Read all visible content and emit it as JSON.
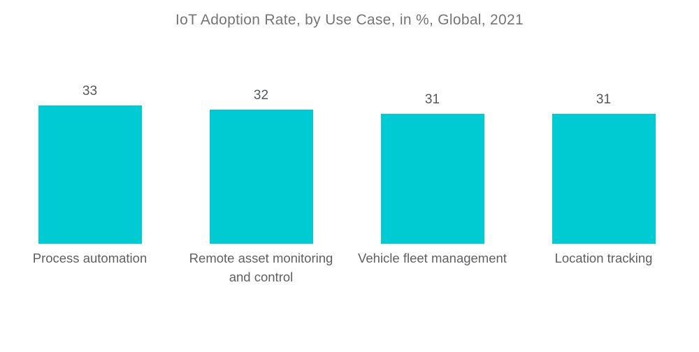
{
  "title": "IoT Adoption Rate, by Use Case, in %, Global, 2021",
  "colors": {
    "bar": "#00CBD2",
    "title_text": "#737577",
    "value_text": "#55575a",
    "category_text": "#5e6063",
    "background": "#ffffff"
  },
  "chart_data": {
    "type": "bar",
    "title": "IoT Adoption Rate, by Use Case, in %, Global, 2021",
    "categories": [
      "Process automation",
      "Remote asset monitoring and control",
      "Vehicle fleet management",
      "Location tracking"
    ],
    "values": [
      33,
      32,
      31,
      31
    ],
    "value_labels": [
      "33",
      "32",
      "31",
      "31"
    ],
    "xlabel": "",
    "ylabel": "",
    "ylim": [
      0,
      35
    ],
    "grid": false,
    "legend": false,
    "axes_shown": false,
    "data_labels_position": "above-bar",
    "orientation": "vertical"
  }
}
